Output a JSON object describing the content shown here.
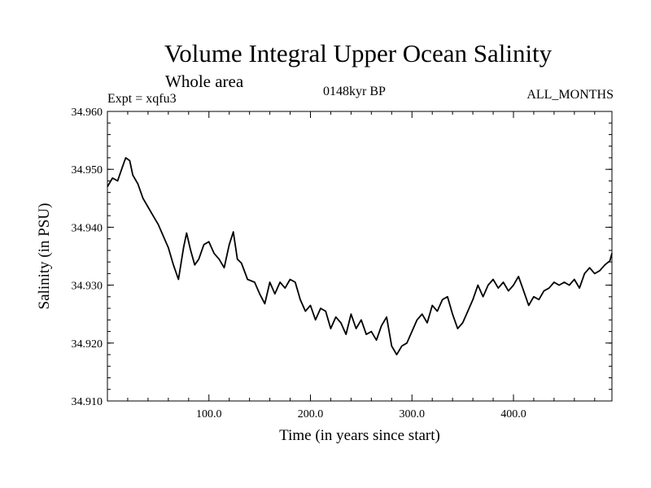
{
  "header": {
    "title": "Volume Integral Upper Ocean Salinity",
    "subtitle": "Whole area",
    "experiment": "Expt = xqfu3",
    "period": "0148kyr BP",
    "months": "ALL_MONTHS"
  },
  "chart_data": {
    "type": "line",
    "title": "Volume Integral Upper Ocean Salinity",
    "xlabel": "Time (in years since start)",
    "ylabel": "Salinity (in PSU)",
    "xlim": [
      0,
      497
    ],
    "ylim": [
      34.91,
      34.96
    ],
    "xticks": [
      100,
      200,
      300,
      400
    ],
    "xtick_labels": [
      "100.0",
      "200.0",
      "300.0",
      "400.0"
    ],
    "yticks": [
      34.91,
      34.92,
      34.93,
      34.94,
      34.95,
      34.96
    ],
    "ytick_labels": [
      "34.910",
      "34.920",
      "34.930",
      "34.940",
      "34.950",
      "34.960"
    ],
    "grid": false,
    "series": [
      {
        "name": "Salinity",
        "color": "#000000",
        "x": [
          0,
          5,
          10,
          15,
          18,
          22,
          25,
          30,
          35,
          40,
          45,
          50,
          55,
          60,
          65,
          70,
          75,
          78,
          82,
          86,
          90,
          95,
          100,
          105,
          110,
          115,
          120,
          124,
          128,
          132,
          138,
          145,
          150,
          155,
          160,
          165,
          170,
          175,
          180,
          185,
          190,
          195,
          200,
          205,
          210,
          215,
          220,
          225,
          230,
          235,
          240,
          245,
          250,
          255,
          260,
          265,
          270,
          275,
          280,
          285,
          290,
          295,
          300,
          305,
          310,
          315,
          320,
          325,
          330,
          335,
          340,
          345,
          350,
          355,
          360,
          365,
          370,
          375,
          380,
          385,
          390,
          395,
          400,
          405,
          410,
          415,
          420,
          425,
          430,
          435,
          440,
          445,
          450,
          455,
          460,
          465,
          470,
          475,
          480,
          485,
          490,
          495,
          497
        ],
        "values": [
          34.947,
          34.9485,
          34.948,
          34.9505,
          34.952,
          34.9515,
          34.949,
          34.9475,
          34.945,
          34.9435,
          34.942,
          34.9405,
          34.9385,
          34.9365,
          34.9335,
          34.931,
          34.9365,
          34.939,
          34.936,
          34.9335,
          34.9345,
          34.937,
          34.9375,
          34.9355,
          34.9345,
          34.933,
          34.937,
          34.9392,
          34.9345,
          34.9338,
          34.931,
          34.9305,
          34.9285,
          34.9268,
          34.9305,
          34.9285,
          34.9305,
          34.9295,
          34.931,
          34.9305,
          34.9275,
          34.9255,
          34.9265,
          34.924,
          34.926,
          34.9255,
          34.9225,
          34.9245,
          34.9235,
          34.9215,
          34.925,
          34.9225,
          34.924,
          34.9215,
          34.922,
          34.9205,
          34.923,
          34.9245,
          34.9195,
          34.918,
          34.9195,
          34.92,
          34.922,
          34.924,
          34.925,
          34.9235,
          34.9265,
          34.9255,
          34.9275,
          34.928,
          34.925,
          34.9225,
          34.9235,
          34.9255,
          34.9275,
          34.93,
          34.928,
          34.93,
          34.931,
          34.9295,
          34.9305,
          34.929,
          34.93,
          34.9315,
          34.929,
          34.9265,
          34.928,
          34.9275,
          34.929,
          34.9295,
          34.9305,
          34.93,
          34.9305,
          34.93,
          34.931,
          34.9295,
          34.932,
          34.933,
          34.932,
          34.9325,
          34.9335,
          34.9342,
          34.9355
        ]
      }
    ]
  }
}
